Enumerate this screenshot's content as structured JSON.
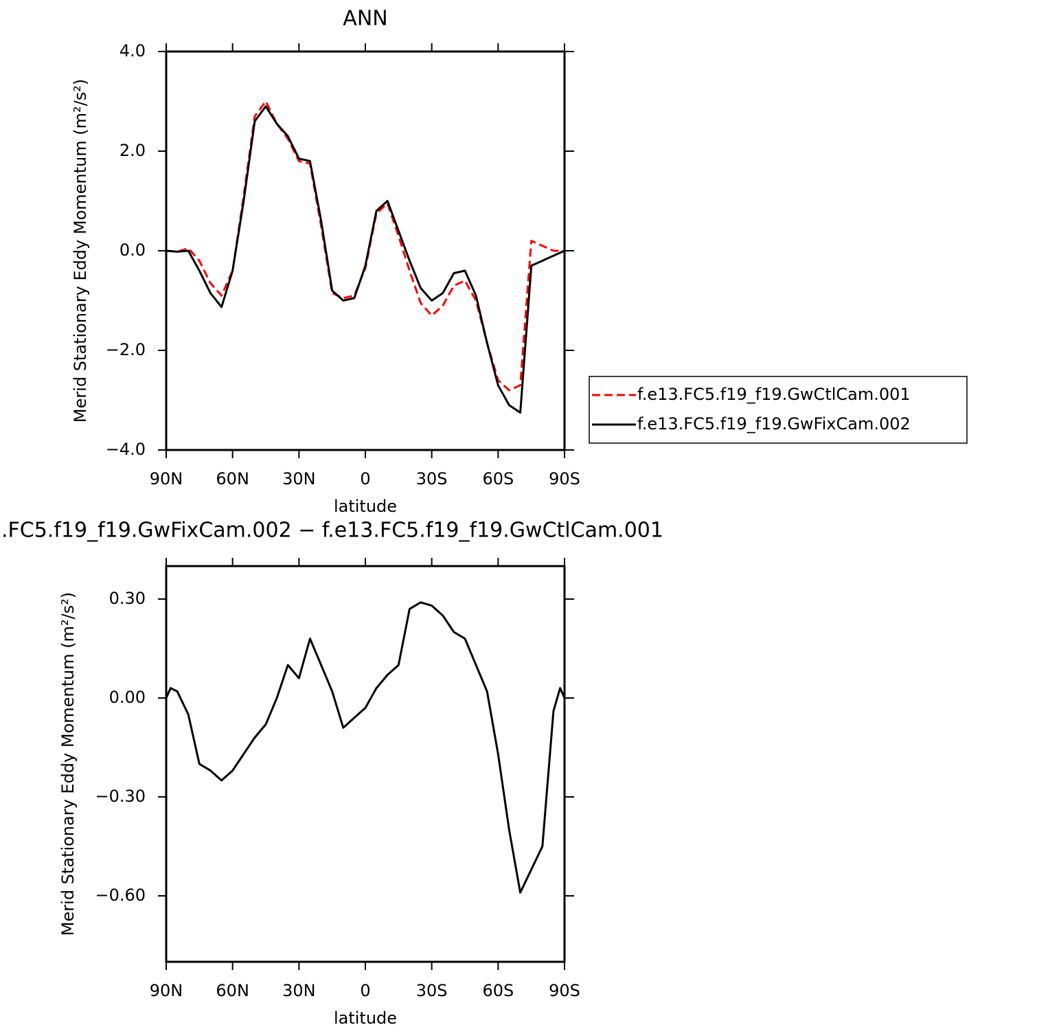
{
  "chart_data": [
    {
      "type": "line",
      "title": "ANN",
      "x_label": "latitude",
      "y_label": "Merid Stationary Eddy Momentum (m²/s²)",
      "x": [
        90,
        85,
        80,
        75,
        70,
        65,
        60,
        55,
        50,
        45,
        40,
        35,
        30,
        25,
        20,
        15,
        10,
        5,
        0,
        -5,
        -10,
        -15,
        -20,
        -25,
        -30,
        -35,
        -40,
        -45,
        -50,
        -55,
        -60,
        -65,
        -70,
        -75,
        -80,
        -85,
        -90
      ],
      "series": [
        {
          "name": "f.e13.FC5.f19_f19.GwCtlCam.001",
          "color": "#ff0000",
          "dashed": true,
          "values": [
            0,
            -0.02,
            0.05,
            -0.2,
            -0.65,
            -0.9,
            -0.4,
            1.1,
            2.7,
            3.0,
            2.55,
            2.25,
            1.8,
            1.75,
            0.5,
            -0.85,
            -0.95,
            -0.9,
            -0.35,
            0.75,
            0.95,
            0.3,
            -0.4,
            -1.05,
            -1.3,
            -1.1,
            -0.7,
            -0.6,
            -1.0,
            -1.85,
            -2.6,
            -2.8,
            -2.7,
            0.2,
            0.1,
            0.0,
            0.0
          ]
        },
        {
          "name": "f.e13.FC5.f19_f19.GwFixCam.002",
          "color": "#000000",
          "dashed": false,
          "values": [
            0,
            -0.02,
            0.0,
            -0.4,
            -0.85,
            -1.13,
            -0.4,
            1.0,
            2.6,
            2.9,
            2.55,
            2.3,
            1.85,
            1.8,
            0.6,
            -0.8,
            -1.0,
            -0.95,
            -0.3,
            0.8,
            1.0,
            0.4,
            -0.2,
            -0.75,
            -1.0,
            -0.85,
            -0.45,
            -0.4,
            -0.9,
            -1.85,
            -2.7,
            -3.1,
            -3.25,
            -0.3,
            -0.2,
            -0.1,
            0.0
          ]
        }
      ],
      "xlim": [
        90,
        -90
      ],
      "xticks": [
        {
          "value": 90,
          "label": "90N"
        },
        {
          "value": 60,
          "label": "60N"
        },
        {
          "value": 30,
          "label": "30N"
        },
        0,
        {
          "value": -30,
          "label": "30S"
        },
        {
          "value": -60,
          "label": "60S"
        },
        {
          "value": -90,
          "label": "90S"
        }
      ],
      "ylim": [
        -4,
        4
      ],
      "yticks": [
        {
          "value": -4,
          "label": "−4.0"
        },
        {
          "value": -2,
          "label": "−2.0"
        },
        {
          "value": 0,
          "label": "0.0"
        },
        {
          "value": 2,
          "label": "2.0"
        },
        {
          "value": 4,
          "label": "4.0"
        }
      ],
      "legend": "right"
    },
    {
      "type": "line",
      "title": ".FC5.f19_f19.GwFixCam.002 − f.e13.FC5.f19_f19.GwCtlCam.001",
      "x_label": "latitude",
      "y_label": "Merid Stationary Eddy Momentum (m²/s²)",
      "x": [
        90,
        88,
        85,
        80,
        75,
        70,
        65,
        60,
        55,
        50,
        45,
        40,
        35,
        30,
        25,
        20,
        15,
        10,
        5,
        0,
        -5,
        -10,
        -15,
        -20,
        -25,
        -30,
        -35,
        -40,
        -45,
        -50,
        -55,
        -60,
        -65,
        -70,
        -75,
        -80,
        -85,
        -88,
        -90
      ],
      "series": [
        {
          "color": "#000000",
          "dashed": false,
          "values": [
            0,
            0.03,
            0.02,
            -0.05,
            -0.2,
            -0.22,
            -0.25,
            -0.22,
            -0.17,
            -0.12,
            -0.08,
            0.0,
            0.1,
            0.06,
            0.18,
            0.1,
            0.02,
            -0.09,
            -0.06,
            -0.03,
            0.03,
            0.07,
            0.1,
            0.27,
            0.29,
            0.28,
            0.25,
            0.2,
            0.18,
            0.1,
            0.02,
            -0.17,
            -0.4,
            -0.59,
            -0.52,
            -0.45,
            -0.04,
            0.03,
            0.0
          ]
        }
      ],
      "xlim": [
        90,
        -90
      ],
      "xticks": [
        {
          "value": 90,
          "label": "90N"
        },
        {
          "value": 60,
          "label": "60N"
        },
        {
          "value": 30,
          "label": "30N"
        },
        0,
        {
          "value": -30,
          "label": "30S"
        },
        {
          "value": -60,
          "label": "60S"
        },
        {
          "value": -90,
          "label": "90S"
        }
      ],
      "ylim": [
        -0.8,
        0.4
      ],
      "yticks": [
        {
          "value": -0.6,
          "label": "−0.60"
        },
        {
          "value": -0.3,
          "label": "−0.30"
        },
        {
          "value": 0,
          "label": "0.00"
        },
        {
          "value": 0.3,
          "label": "0.30"
        }
      ]
    }
  ]
}
